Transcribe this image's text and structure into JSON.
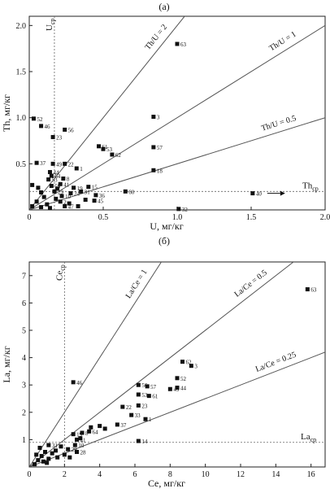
{
  "chart_data": [
    {
      "type": "scatter",
      "panel_label": "(а)",
      "xlabel": "U, мг/кг",
      "ylabel": "Th, мг/кг",
      "xlim": [
        0,
        2.0
      ],
      "ylim": [
        0,
        2.1
      ],
      "xticks": [
        "0",
        "0.5",
        "1.0",
        "1.5",
        "2.0"
      ],
      "yticks": [
        "0.5",
        "1.0",
        "1.5",
        "2.0"
      ],
      "ref_lines": [
        {
          "label": "Th/U = 2",
          "slope": 2
        },
        {
          "label": "Th/U = 1",
          "slope": 1
        },
        {
          "label": "Th/U = 0.5",
          "slope": 0.5
        }
      ],
      "avg_x": {
        "label": "Ucp",
        "base": "U",
        "sub": "cp",
        "value": 0.17
      },
      "avg_y": {
        "label": "Thcp",
        "base": "Th",
        "sub": "cp",
        "value": 0.2
      },
      "points": [
        {
          "x": 0.03,
          "y": 0.99,
          "label": "52"
        },
        {
          "x": 0.08,
          "y": 0.91,
          "label": "46"
        },
        {
          "x": 0.24,
          "y": 0.87,
          "label": "56"
        },
        {
          "x": 0.16,
          "y": 0.79,
          "label": "23"
        },
        {
          "x": 0.05,
          "y": 0.51,
          "label": "37"
        },
        {
          "x": 0.16,
          "y": 0.5,
          "label": "49"
        },
        {
          "x": 0.24,
          "y": 0.5,
          "label": "22"
        },
        {
          "x": 0.32,
          "y": 0.45,
          "label": "1"
        },
        {
          "x": 0.14,
          "y": 0.41,
          "label": "44"
        },
        {
          "x": 0.15,
          "y": 0.37,
          "label": "64"
        },
        {
          "x": 0.23,
          "y": 0.34,
          "label": "8"
        },
        {
          "x": 0.13,
          "y": 0.33,
          "label": "53"
        },
        {
          "x": 0.21,
          "y": 0.28,
          "label": "41"
        },
        {
          "x": 0.15,
          "y": 0.26,
          "label": "59"
        },
        {
          "x": 0.3,
          "y": 0.24,
          "label": "19"
        },
        {
          "x": 0.17,
          "y": 0.2,
          "label": "29"
        },
        {
          "x": 0.28,
          "y": 0.18,
          "label": "24"
        },
        {
          "x": 0.22,
          "y": 0.15,
          "label": "10"
        },
        {
          "x": 0.4,
          "y": 0.25,
          "label": "15"
        },
        {
          "x": 0.35,
          "y": 0.2,
          "label": "31"
        },
        {
          "x": 0.45,
          "y": 0.16,
          "label": "36"
        },
        {
          "x": 0.44,
          "y": 0.1,
          "label": "45"
        },
        {
          "x": 0.21,
          "y": 0.09,
          "label": "2"
        },
        {
          "x": 0.24,
          "y": 0.04,
          "label": "47"
        },
        {
          "x": 0.47,
          "y": 0.69,
          "label": "61"
        },
        {
          "x": 0.5,
          "y": 0.66,
          "label": "53"
        },
        {
          "x": 0.56,
          "y": 0.6,
          "label": "62"
        },
        {
          "x": 0.84,
          "y": 1.01,
          "label": "3"
        },
        {
          "x": 0.84,
          "y": 0.68,
          "label": "57"
        },
        {
          "x": 0.84,
          "y": 0.43,
          "label": "18"
        },
        {
          "x": 0.65,
          "y": 0.2,
          "label": "60"
        },
        {
          "x": 1.0,
          "y": 1.8,
          "label": "63"
        },
        {
          "x": 1.01,
          "y": 0.01,
          "label": "32"
        },
        {
          "x": 1.51,
          "y": 0.18,
          "label": "40",
          "arrow": true
        },
        {
          "x": 0.02,
          "y": 0.27,
          "label": ""
        },
        {
          "x": 0.06,
          "y": 0.24,
          "label": ""
        },
        {
          "x": 0.08,
          "y": 0.19,
          "label": ""
        },
        {
          "x": 0.1,
          "y": 0.14,
          "label": ""
        },
        {
          "x": 0.05,
          "y": 0.09,
          "label": ""
        },
        {
          "x": 0.12,
          "y": 0.06,
          "label": ""
        },
        {
          "x": 0.08,
          "y": 0.03,
          "label": ""
        },
        {
          "x": 0.18,
          "y": 0.12,
          "label": ""
        },
        {
          "x": 0.27,
          "y": 0.07,
          "label": ""
        },
        {
          "x": 0.33,
          "y": 0.04,
          "label": ""
        },
        {
          "x": 0.14,
          "y": 0.02,
          "label": ""
        },
        {
          "x": 0.02,
          "y": 0.04,
          "label": ""
        },
        {
          "x": 0.38,
          "y": 0.11,
          "label": ""
        },
        {
          "x": 0.19,
          "y": 0.23,
          "label": ""
        }
      ]
    },
    {
      "type": "scatter",
      "panel_label": "(б)",
      "xlabel": "Ce, мг/кг",
      "ylabel": "La, мг/кг",
      "xlim": [
        0,
        16.8
      ],
      "ylim": [
        0,
        7.5
      ],
      "xticks": [
        "0",
        "2",
        "4",
        "6",
        "8",
        "10",
        "12",
        "14",
        "16"
      ],
      "yticks": [
        "1",
        "2",
        "3",
        "4",
        "5",
        "6",
        "7"
      ],
      "ref_lines": [
        {
          "label": "La/Ce = 1",
          "slope": 1
        },
        {
          "label": "La/Ce = 0.5",
          "slope": 0.5
        },
        {
          "label": "La/Ce = 0.25",
          "slope": 0.25
        }
      ],
      "avg_x": {
        "label": "Cecp",
        "base": "Ce",
        "sub": "cp",
        "value": 2.0
      },
      "avg_y": {
        "label": "Lacp",
        "base": "La",
        "sub": "cp",
        "value": 0.9
      },
      "points": [
        {
          "x": 15.8,
          "y": 6.5,
          "label": "63"
        },
        {
          "x": 2.5,
          "y": 3.1,
          "label": "46"
        },
        {
          "x": 8.7,
          "y": 3.85,
          "label": "62"
        },
        {
          "x": 9.2,
          "y": 3.7,
          "label": "3"
        },
        {
          "x": 6.2,
          "y": 3.0,
          "label": "56"
        },
        {
          "x": 6.7,
          "y": 2.95,
          "label": "57"
        },
        {
          "x": 8.4,
          "y": 3.25,
          "label": "52"
        },
        {
          "x": 6.2,
          "y": 2.65,
          "label": "53"
        },
        {
          "x": 6.8,
          "y": 2.6,
          "label": "61"
        },
        {
          "x": 8.0,
          "y": 2.85,
          "label": "49"
        },
        {
          "x": 8.4,
          "y": 2.9,
          "label": "44"
        },
        {
          "x": 5.3,
          "y": 2.2,
          "label": "22"
        },
        {
          "x": 6.2,
          "y": 2.25,
          "label": "23"
        },
        {
          "x": 5.8,
          "y": 1.9,
          "label": "33"
        },
        {
          "x": 6.6,
          "y": 1.75,
          "label": "1"
        },
        {
          "x": 5.0,
          "y": 1.55,
          "label": "37"
        },
        {
          "x": 2.5,
          "y": 1.2,
          "label": "19"
        },
        {
          "x": 3.0,
          "y": 1.25,
          "label": "8"
        },
        {
          "x": 3.4,
          "y": 1.3,
          "label": "64"
        },
        {
          "x": 2.7,
          "y": 1.0,
          "label": "41"
        },
        {
          "x": 2.6,
          "y": 0.8,
          "label": "10"
        },
        {
          "x": 2.2,
          "y": 0.65,
          "label": "29"
        },
        {
          "x": 2.7,
          "y": 0.55,
          "label": "28"
        },
        {
          "x": 1.1,
          "y": 0.8,
          "label": "31"
        },
        {
          "x": 6.2,
          "y": 0.95,
          "label": "14"
        },
        {
          "x": 3.5,
          "y": 1.45,
          "label": ""
        },
        {
          "x": 4.0,
          "y": 1.5,
          "label": ""
        },
        {
          "x": 4.3,
          "y": 1.4,
          "label": ""
        },
        {
          "x": 2.9,
          "y": 1.05,
          "label": ""
        },
        {
          "x": 1.8,
          "y": 0.75,
          "label": ""
        },
        {
          "x": 1.5,
          "y": 0.6,
          "label": ""
        },
        {
          "x": 1.3,
          "y": 0.5,
          "label": ""
        },
        {
          "x": 0.9,
          "y": 0.55,
          "label": ""
        },
        {
          "x": 0.7,
          "y": 0.4,
          "label": ""
        },
        {
          "x": 0.5,
          "y": 0.25,
          "label": ""
        },
        {
          "x": 0.8,
          "y": 0.2,
          "label": ""
        },
        {
          "x": 1.1,
          "y": 0.3,
          "label": ""
        },
        {
          "x": 1.6,
          "y": 0.35,
          "label": ""
        },
        {
          "x": 2.0,
          "y": 0.45,
          "label": ""
        },
        {
          "x": 0.3,
          "y": 0.1,
          "label": ""
        },
        {
          "x": 0.6,
          "y": 0.7,
          "label": ""
        },
        {
          "x": 1.0,
          "y": 0.15,
          "label": ""
        },
        {
          "x": 2.3,
          "y": 0.35,
          "label": ""
        },
        {
          "x": 0.4,
          "y": 0.45,
          "label": ""
        }
      ]
    }
  ]
}
